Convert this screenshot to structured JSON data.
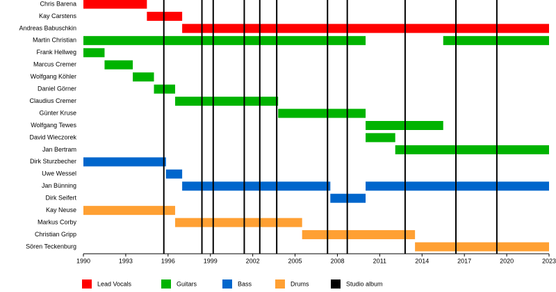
{
  "chart_data": {
    "type": "timeline",
    "xlim": [
      1990,
      2023
    ],
    "xticks": [
      1990,
      1993,
      1996,
      1999,
      2002,
      2005,
      2008,
      2011,
      2014,
      2017,
      2020,
      2023
    ],
    "series": [
      {
        "name": "Lead Vocals",
        "color": "#ff0000",
        "members": [
          {
            "name": "Chris Barena",
            "periods": [
              [
                1990,
                1994.5
              ]
            ]
          },
          {
            "name": "Kay Carstens",
            "periods": [
              [
                1994.5,
                1997
              ]
            ]
          },
          {
            "name": "Andreas Babuschkin",
            "periods": [
              [
                1997,
                2023
              ]
            ]
          }
        ]
      },
      {
        "name": "Guitars",
        "color": "#00b300",
        "members": [
          {
            "name": "Martin Christian",
            "periods": [
              [
                1990,
                2010
              ],
              [
                2015.5,
                2023
              ]
            ]
          },
          {
            "name": "Frank Hellweg",
            "periods": [
              [
                1990,
                1991.5
              ]
            ]
          },
          {
            "name": "Marcus Cremer",
            "periods": [
              [
                1991.5,
                1993.5
              ]
            ]
          },
          {
            "name": "Wolfgang Köhler",
            "periods": [
              [
                1993.5,
                1995
              ]
            ]
          },
          {
            "name": "Daniel Görner",
            "periods": [
              [
                1995,
                1996.5
              ]
            ]
          },
          {
            "name": "Claudius Cremer",
            "periods": [
              [
                1996.5,
                2003.8
              ]
            ]
          },
          {
            "name": "Günter Kruse",
            "periods": [
              [
                2003.8,
                2010
              ]
            ]
          },
          {
            "name": "Wolfgang Tewes",
            "periods": [
              [
                2010,
                2015.5
              ]
            ]
          },
          {
            "name": "David Wieczorek",
            "periods": [
              [
                2010,
                2012.1
              ]
            ]
          },
          {
            "name": "Jan Bertram",
            "periods": [
              [
                2012.1,
                2023
              ]
            ]
          }
        ]
      },
      {
        "name": "Bass",
        "color": "#0066cc",
        "members": [
          {
            "name": "Dirk Sturzbecher",
            "periods": [
              [
                1990,
                1995.85
              ]
            ]
          },
          {
            "name": "Uwe Wessel",
            "periods": [
              [
                1995.85,
                1997
              ]
            ]
          },
          {
            "name": "Jan Bünning",
            "periods": [
              [
                1997,
                2007.5
              ],
              [
                2010,
                2023
              ]
            ]
          },
          {
            "name": "Dirk Seifert",
            "periods": [
              [
                2007.5,
                2010
              ]
            ]
          }
        ]
      },
      {
        "name": "Drums",
        "color": "#ffa033",
        "members": [
          {
            "name": "Kay Neuse",
            "periods": [
              [
                1990,
                1996.5
              ]
            ]
          },
          {
            "name": "Markus Corby",
            "periods": [
              [
                1996.5,
                2005.5
              ]
            ]
          },
          {
            "name": "Christian Gripp",
            "periods": [
              [
                2005.5,
                2013.5
              ]
            ]
          },
          {
            "name": "Sören Teckenburg",
            "periods": [
              [
                2013.5,
                2023
              ]
            ]
          }
        ]
      }
    ],
    "albums": {
      "name": "Studio album",
      "color": "#000000",
      "x": [
        1995.7,
        1998.4,
        1999.2,
        2001.4,
        2002.5,
        2003.7,
        2007.3,
        2008.7,
        2012.8,
        2016.4,
        2019.3
      ]
    }
  }
}
